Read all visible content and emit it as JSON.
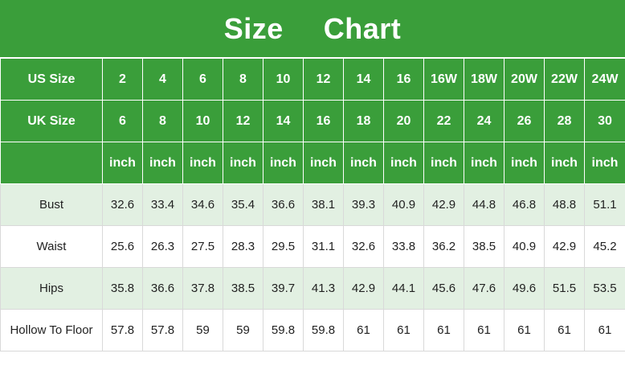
{
  "title": {
    "word1": "Size",
    "word2": "Chart"
  },
  "header_rows": [
    {
      "label": "US Size",
      "cells": [
        "2",
        "4",
        "6",
        "8",
        "10",
        "12",
        "14",
        "16",
        "16W",
        "18W",
        "20W",
        "22W",
        "24W"
      ]
    },
    {
      "label": "UK Size",
      "cells": [
        "6",
        "8",
        "10",
        "12",
        "14",
        "16",
        "18",
        "20",
        "22",
        "24",
        "26",
        "28",
        "30"
      ]
    },
    {
      "label": "",
      "cells": [
        "inch",
        "inch",
        "inch",
        "inch",
        "inch",
        "inch",
        "inch",
        "inch",
        "inch",
        "inch",
        "inch",
        "inch",
        "inch"
      ]
    }
  ],
  "measurements": [
    {
      "label": "Bust",
      "values": [
        "32.6",
        "33.4",
        "34.6",
        "35.4",
        "36.6",
        "38.1",
        "39.3",
        "40.9",
        "42.9",
        "44.8",
        "46.8",
        "48.8",
        "51.1"
      ]
    },
    {
      "label": "Waist",
      "values": [
        "25.6",
        "26.3",
        "27.5",
        "28.3",
        "29.5",
        "31.1",
        "32.6",
        "33.8",
        "36.2",
        "38.5",
        "40.9",
        "42.9",
        "45.2"
      ]
    },
    {
      "label": "Hips",
      "values": [
        "35.8",
        "36.6",
        "37.8",
        "38.5",
        "39.7",
        "41.3",
        "42.9",
        "44.1",
        "45.6",
        "47.6",
        "49.6",
        "51.5",
        "53.5"
      ]
    },
    {
      "label": "Hollow To Floor",
      "values": [
        "57.8",
        "57.8",
        "59",
        "59",
        "59.8",
        "59.8",
        "61",
        "61",
        "61",
        "61",
        "61",
        "61",
        "61"
      ]
    }
  ],
  "colors": {
    "header_green": "#3a9e3a",
    "row_shade": "#e2f0e2",
    "text_white": "#ffffff"
  }
}
